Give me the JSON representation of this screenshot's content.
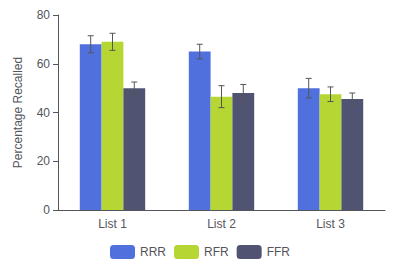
{
  "chart_data": {
    "type": "bar",
    "categories": [
      "List 1",
      "List 2",
      "List 3"
    ],
    "series": [
      {
        "name": "RRR",
        "values": [
          68,
          65,
          50
        ],
        "errors": [
          3.5,
          3.0,
          4.0
        ]
      },
      {
        "name": "RFR",
        "values": [
          69,
          46.5,
          47.5
        ],
        "errors": [
          3.5,
          4.5,
          3.0
        ]
      },
      {
        "name": "FFR",
        "values": [
          50,
          48,
          45.5
        ],
        "errors": [
          2.5,
          3.5,
          2.5
        ]
      }
    ],
    "ylabel": "Percentage Recalled",
    "ylim": [
      0,
      80
    ],
    "yticks": [
      0,
      20,
      40,
      60,
      80
    ],
    "grid": false,
    "legend": "bottom"
  }
}
